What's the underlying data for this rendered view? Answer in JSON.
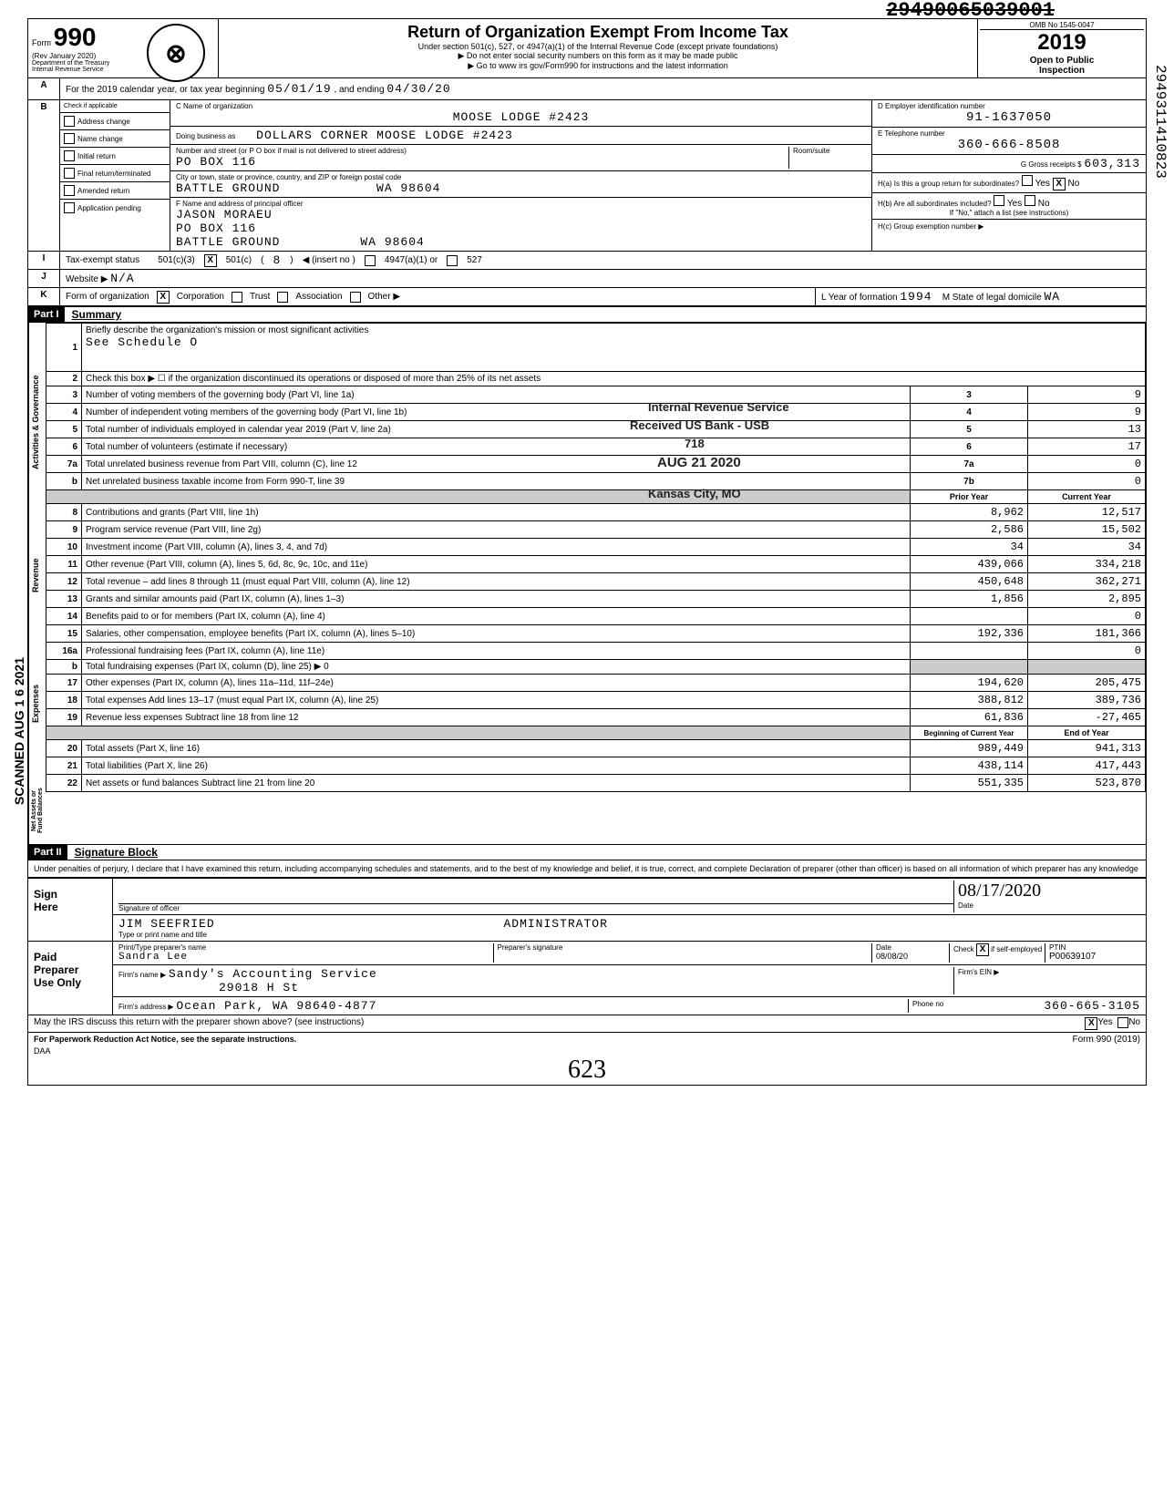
{
  "top_number": "29490065039001",
  "side_number": "2949311410823",
  "scanned_text": "SCANNED AUG 1 6 2021",
  "header": {
    "form_label": "Form",
    "form_number": "990",
    "rev": "(Rev January 2020)",
    "dept": "Department of the Treasury\nInternal Revenue Service",
    "title": "Return of Organization Exempt From Income Tax",
    "subtitle1": "Under section 501(c), 527, or 4947(a)(1) of the Internal Revenue Code (except private foundations)",
    "subtitle2": "▶ Do not enter social security numbers on this form as it may be made public",
    "subtitle3": "▶ Go to www irs gov/Form990 for instructions and the latest information",
    "omb": "OMB No 1545-0047",
    "year": "2019",
    "open": "Open to Public\nInspection",
    "logo": "⊗"
  },
  "line_a": {
    "text": "For the 2019 calendar year, or tax year beginning",
    "begin": "05/01/19",
    "mid": ", and ending",
    "end": "04/30/20"
  },
  "section_b": {
    "label": "Check if applicable",
    "items": [
      "Address change",
      "Name change",
      "Initial return",
      "Final return/terminated",
      "Amended return",
      "Application pending"
    ]
  },
  "org": {
    "c_label": "C Name of organization",
    "name": "MOOSE LODGE #2423",
    "dba_label": "Doing business as",
    "dba": "DOLLARS CORNER MOOSE LODGE #2423",
    "addr_label": "Number and street (or P O box if mail is not delivered to street address)",
    "addr": "PO BOX 116",
    "room_label": "Room/suite",
    "city_label": "City or town, state or province, country, and ZIP or foreign postal code",
    "city": "BATTLE GROUND            WA 98604",
    "f_label": "F Name and address of principal officer",
    "officer_name": "JASON MORAEU",
    "officer_addr": "PO BOX 116",
    "officer_city": "BATTLE GROUND          WA 98604"
  },
  "right": {
    "d_label": "D Employer identification number",
    "ein": "91-1637050",
    "e_label": "E Telephone number",
    "phone": "360-666-8508",
    "g_label": "G Gross receipts $",
    "gross": "603,313",
    "ha_label": "H(a) Is this a group return for subordinates?",
    "hb_label": "H(b) Are all subordinates included?",
    "hb_note": "If \"No,\" attach a list (see instructions)",
    "hc_label": "H(c) Group exemption number ▶",
    "yes": "Yes",
    "no": "No"
  },
  "line_i": {
    "label": "Tax-exempt status",
    "opts": [
      "501(c)(3)",
      "501(c)",
      "◀ (insert no )",
      "4947(a)(1) or",
      "527"
    ],
    "insert": "8"
  },
  "line_j": {
    "label": "Website ▶",
    "value": "N/A"
  },
  "line_k": {
    "label": "Form of organization",
    "opts": [
      "Corporation",
      "Trust",
      "Association",
      "Other ▶"
    ],
    "l_label": "L  Year of formation",
    "year": "1994",
    "m_label": "M  State of legal domicile",
    "state": "WA"
  },
  "part1": {
    "header": "Part I",
    "title": "Summary",
    "line1": "Briefly describe the organization's mission or most significant activities",
    "line1_val": "See Schedule O",
    "line2": "Check this box ▶ ☐  if the organization discontinued its operations or disposed of more than 25% of its net assets",
    "stamp1": "Internal Revenue Service",
    "stamp2": "Received US Bank - USB",
    "stamp3": "718",
    "stamp4": "AUG 21 2020",
    "stamp5": "Kansas City, MO",
    "rows": [
      {
        "n": "3",
        "d": "Number of voting members of the governing body (Part VI, line 1a)",
        "box": "3",
        "v": "9"
      },
      {
        "n": "4",
        "d": "Number of independent voting members of the governing body (Part VI, line 1b)",
        "box": "4",
        "v": "9"
      },
      {
        "n": "5",
        "d": "Total number of individuals employed in calendar year 2019 (Part V, line 2a)",
        "box": "5",
        "v": "13"
      },
      {
        "n": "6",
        "d": "Total number of volunteers (estimate if necessary)",
        "box": "6",
        "v": "17"
      },
      {
        "n": "7a",
        "d": "Total unrelated business revenue from Part VIII, column (C), line 12",
        "box": "7a",
        "v": "0"
      },
      {
        "n": "b",
        "d": "Net unrelated business taxable income from Form 990-T, line 39",
        "box": "7b",
        "v": "0"
      }
    ],
    "prior_label": "Prior Year",
    "current_label": "Current Year",
    "rows2": [
      {
        "n": "8",
        "d": "Contributions and grants (Part VIII, line 1h)",
        "p": "8,962",
        "c": "12,517"
      },
      {
        "n": "9",
        "d": "Program service revenue (Part VIII, line 2g)",
        "p": "2,586",
        "c": "15,502"
      },
      {
        "n": "10",
        "d": "Investment income (Part VIII, column (A), lines 3, 4, and 7d)",
        "p": "34",
        "c": "34"
      },
      {
        "n": "11",
        "d": "Other revenue (Part VIII, column (A), lines 5, 6d, 8c, 9c, 10c, and 11e)",
        "p": "439,066",
        "c": "334,218"
      },
      {
        "n": "12",
        "d": "Total revenue – add lines 8 through 11 (must equal Part VIII, column (A), line 12)",
        "p": "450,648",
        "c": "362,271"
      },
      {
        "n": "13",
        "d": "Grants and similar amounts paid (Part IX, column (A), lines 1–3)",
        "p": "1,856",
        "c": "2,895"
      },
      {
        "n": "14",
        "d": "Benefits paid to or for members (Part IX, column (A), line 4)",
        "p": "",
        "c": "0"
      },
      {
        "n": "15",
        "d": "Salaries, other compensation, employee benefits (Part IX, column (A), lines 5–10)",
        "p": "192,336",
        "c": "181,366"
      },
      {
        "n": "16a",
        "d": "Professional fundraising fees (Part IX, column (A), line 11e)",
        "p": "",
        "c": "0"
      },
      {
        "n": "b",
        "d": "Total fundraising expenses (Part IX, column (D), line 25) ▶                              0",
        "p": "",
        "c": "",
        "shaded": true
      },
      {
        "n": "17",
        "d": "Other expenses (Part IX, column (A), lines 11a–11d, 11f–24e)",
        "p": "194,620",
        "c": "205,475"
      },
      {
        "n": "18",
        "d": "Total expenses Add lines 13–17 (must equal Part IX, column (A), line 25)",
        "p": "388,812",
        "c": "389,736"
      },
      {
        "n": "19",
        "d": "Revenue less expenses Subtract line 18 from line 12",
        "p": "61,836",
        "c": "-27,465"
      }
    ],
    "begin_label": "Beginning of Current Year",
    "end_label": "End of Year",
    "rows3": [
      {
        "n": "20",
        "d": "Total assets (Part X, line 16)",
        "p": "989,449",
        "c": "941,313"
      },
      {
        "n": "21",
        "d": "Total liabilities (Part X, line 26)",
        "p": "438,114",
        "c": "417,443"
      },
      {
        "n": "22",
        "d": "Net assets or fund balances Subtract line 21 from line 20",
        "p": "551,335",
        "c": "523,870"
      }
    ],
    "vert_labels": [
      "Activities & Governance",
      "Revenue",
      "Expenses",
      "Net Assets or\nFund Balances"
    ]
  },
  "part2": {
    "header": "Part II",
    "title": "Signature Block",
    "perjury": "Under penalties of perjury, I declare that I have examined this return, including accompanying schedules and statements, and to the best of my knowledge and belief, it is true, correct, and complete Declaration of preparer (other than officer) is based on all information of which preparer has any knowledge",
    "sign_here": "Sign\nHere",
    "sig_label": "Signature of officer",
    "date_label": "Date",
    "date_val": "08/17/2020",
    "name_label": "Type or print name and title",
    "name_val": "JIM SEEFRIED                                    ADMINISTRATOR",
    "paid": "Paid\nPreparer\nUse Only",
    "prep_name_label": "Print/Type preparer's name",
    "prep_name": "Sandra Lee",
    "prep_sig_label": "Preparer's signature",
    "prep_date_label": "Date",
    "prep_date": "08/08/20",
    "check_label": "Check",
    "self_emp": "if self-employed",
    "ptin_label": "PTIN",
    "ptin": "P00639107",
    "firm_name_label": "Firm's name    ▶",
    "firm_name": "Sandy's Accounting Service",
    "firm_ein_label": "Firm's EIN ▶",
    "firm_addr_label": "Firm's address ▶",
    "firm_addr1": "29018 H St",
    "firm_addr2": "Ocean Park, WA   98640-4877",
    "phone_label": "Phone no",
    "phone": "360-665-3105",
    "discuss": "May the IRS discuss this return with the preparer shown above? (see instructions)",
    "paperwork": "For Paperwork Reduction Act Notice, see the separate instructions.",
    "daa": "DAA",
    "form_foot": "Form 990 (2019)",
    "hand": "623"
  }
}
